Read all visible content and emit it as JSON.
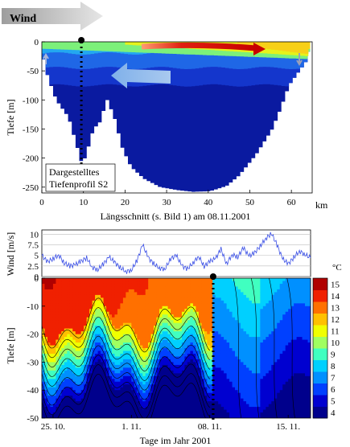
{
  "figure": {
    "wind_arrow_label": "Wind",
    "section_caption": "Längsschnitt (s. Bild 1) am 08.11.2001",
    "profile_note_line1": "Dargestelltes",
    "profile_note_line2": "Tiefenprofil S2",
    "bottom_xlabel": "Tage im Jahr 2001",
    "colorbar_unit": "°C"
  },
  "chart_data": [
    {
      "type": "heatmap",
      "ylabel": "Tiefe [m]",
      "xlim": [
        0,
        65
      ],
      "ylim": [
        -260,
        0
      ],
      "x_ticks": [
        0,
        10,
        20,
        30,
        40,
        50,
        60
      ],
      "x_tick_labels": [
        "0",
        "10",
        "20",
        "30",
        "40",
        "50",
        "60"
      ],
      "x_unit": "km",
      "y_ticks": [
        0,
        -50,
        -100,
        -150,
        -200,
        -250
      ],
      "y_tick_labels": [
        "0",
        "-50",
        "-100",
        "-150",
        "-200",
        "-250"
      ],
      "profile_marker_km": 9.5,
      "annotations": [
        "red arrow: surface flow toward 50 km",
        "light blue arrow: return flow toward 15 km"
      ],
      "bathymetry_km_depth": [
        [
          0,
          -30
        ],
        [
          1,
          -60
        ],
        [
          3,
          -100
        ],
        [
          6,
          -130
        ],
        [
          9,
          -205
        ],
        [
          10,
          -200
        ],
        [
          12,
          -150
        ],
        [
          14,
          -135
        ],
        [
          15,
          -95
        ],
        [
          17,
          -130
        ],
        [
          19,
          -185
        ],
        [
          21,
          -215
        ],
        [
          24,
          -235
        ],
        [
          28,
          -250
        ],
        [
          32,
          -255
        ],
        [
          36,
          -258
        ],
        [
          40,
          -257
        ],
        [
          44,
          -248
        ],
        [
          47,
          -230
        ],
        [
          51,
          -195
        ],
        [
          55,
          -150
        ],
        [
          57,
          -115
        ],
        [
          59,
          -75
        ],
        [
          61,
          -55
        ],
        [
          63,
          -35
        ],
        [
          64,
          -15
        ],
        [
          64.5,
          0
        ]
      ]
    },
    {
      "type": "line",
      "ylabel": "Wind [m/s]",
      "ylim": [
        0,
        11
      ],
      "y_ticks": [
        0,
        2.5,
        5,
        7.5,
        10
      ],
      "y_tick_labels": [
        "0",
        "2.5",
        "5",
        "7.5",
        "10"
      ],
      "xlim": [
        297,
        321
      ],
      "series": [
        {
          "color": "#3a4fe6",
          "x": [
            297,
            297.5,
            298,
            298.5,
            299,
            299.5,
            300,
            300.5,
            301,
            301.5,
            302,
            302.5,
            303,
            303.5,
            304,
            304.5,
            305,
            305.5,
            306,
            306.5,
            307,
            307.5,
            308,
            308.5,
            309,
            309.5,
            310,
            310.5,
            311,
            311.5,
            312,
            312.5,
            313,
            313.5,
            314,
            314.5,
            315,
            315.5,
            316,
            316.5,
            317,
            317.5,
            318,
            318.5,
            319,
            319.5,
            320,
            320.5,
            321
          ],
          "values": [
            5,
            3.5,
            4.2,
            5.1,
            3.2,
            2.5,
            2.8,
            3.6,
            4.4,
            2.2,
            1.6,
            3.0,
            4.6,
            3.4,
            2.1,
            1.2,
            1.5,
            3.8,
            7.5,
            4.5,
            3.0,
            2.0,
            1.8,
            4.2,
            5.0,
            2.6,
            1.8,
            3.2,
            4.8,
            2.4,
            3.6,
            4.2,
            6.5,
            3.0,
            5.2,
            4.6,
            6.8,
            4.8,
            5.6,
            7.2,
            9.0,
            10.2,
            7.5,
            4.2,
            3.0,
            4.5,
            6.0,
            5.2,
            4.4
          ]
        }
      ]
    },
    {
      "type": "heatmap",
      "ylabel": "Tiefe [m]",
      "ylim": [
        -50,
        0
      ],
      "y_ticks": [
        0,
        -10,
        -20,
        -30,
        -40,
        -50
      ],
      "y_tick_labels": [
        "0",
        "-10",
        "-20",
        "-30",
        "-40",
        "-50"
      ],
      "xlim": [
        297,
        321
      ],
      "x_ticks": [
        298,
        305,
        312,
        319
      ],
      "x_tick_labels": [
        "25. 10.",
        "1. 11.",
        "08. 11.",
        "15. 11."
      ],
      "profile_marker_day": 312.3,
      "colorbar": {
        "values": [
          4,
          5,
          6,
          7,
          8,
          9,
          10,
          11,
          12,
          13,
          14,
          15
        ],
        "labels": [
          "4",
          "5",
          "6",
          "7",
          "8",
          "9",
          "10",
          "11",
          "12",
          "13",
          "14",
          "15"
        ],
        "colors": [
          "#00008c",
          "#0000d0",
          "#0040ff",
          "#0090ff",
          "#00d0ff",
          "#40ffc0",
          "#a0ff60",
          "#f0ff00",
          "#ffc000",
          "#ff7000",
          "#f02000",
          "#b00000"
        ]
      }
    }
  ]
}
